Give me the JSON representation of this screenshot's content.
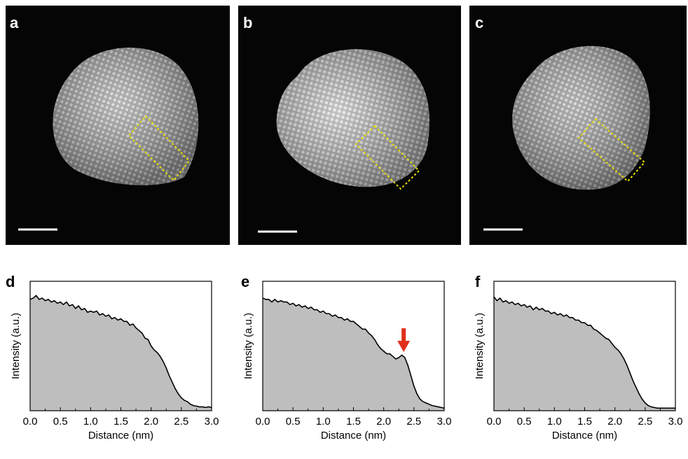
{
  "figure": {
    "image_panels": [
      {
        "letter": "a",
        "lattice_color": "#d8d8d8",
        "region_box_color": "#e8e000"
      },
      {
        "letter": "b",
        "lattice_color": "#e6e6e6",
        "region_box_color": "#e8e000"
      },
      {
        "letter": "c",
        "lattice_color": "#d4d4d4",
        "region_box_color": "#e8e000"
      }
    ],
    "plot_panels": [
      {
        "letter": "d"
      },
      {
        "letter": "e",
        "arrow_color": "#e0301a",
        "arrow_x": 2.33
      },
      {
        "letter": "f"
      }
    ]
  },
  "chart_data": [
    {
      "type": "area",
      "panel": "d",
      "xlabel": "Distance (nm)",
      "ylabel": "Intensity (a.u.)",
      "xlim": [
        0.0,
        3.0
      ],
      "ylim": [
        0,
        1
      ],
      "xticks": [
        "0.0",
        "0.5",
        "1.0",
        "1.5",
        "2.0",
        "2.5",
        "3.0"
      ],
      "yticks_shown": false,
      "fill_color": "#bebebe",
      "x": [
        0.0,
        0.05,
        0.1,
        0.15,
        0.2,
        0.25,
        0.3,
        0.35,
        0.4,
        0.45,
        0.5,
        0.55,
        0.6,
        0.65,
        0.7,
        0.75,
        0.8,
        0.85,
        0.9,
        0.95,
        1.0,
        1.05,
        1.1,
        1.15,
        1.2,
        1.25,
        1.3,
        1.35,
        1.4,
        1.45,
        1.5,
        1.55,
        1.6,
        1.65,
        1.7,
        1.75,
        1.8,
        1.85,
        1.9,
        1.95,
        2.0,
        2.05,
        2.1,
        2.15,
        2.2,
        2.25,
        2.3,
        2.35,
        2.4,
        2.45,
        2.5,
        2.55,
        2.6,
        2.65,
        2.7,
        2.75,
        2.8,
        2.85,
        2.9,
        2.95,
        3.0
      ],
      "y": [
        0.86,
        0.87,
        0.89,
        0.86,
        0.87,
        0.85,
        0.86,
        0.84,
        0.85,
        0.83,
        0.84,
        0.82,
        0.84,
        0.81,
        0.82,
        0.79,
        0.81,
        0.78,
        0.79,
        0.76,
        0.77,
        0.76,
        0.77,
        0.74,
        0.75,
        0.73,
        0.74,
        0.71,
        0.72,
        0.7,
        0.71,
        0.69,
        0.69,
        0.66,
        0.67,
        0.64,
        0.62,
        0.6,
        0.56,
        0.55,
        0.5,
        0.47,
        0.45,
        0.42,
        0.38,
        0.33,
        0.27,
        0.22,
        0.17,
        0.13,
        0.1,
        0.08,
        0.07,
        0.05,
        0.04,
        0.035,
        0.03,
        0.03,
        0.025,
        0.03,
        0.025
      ]
    },
    {
      "type": "area",
      "panel": "e",
      "xlabel": "Distance (nm)",
      "ylabel": "Intensity (a.u.)",
      "xlim": [
        0.0,
        3.0
      ],
      "ylim": [
        0,
        1
      ],
      "xticks": [
        "0.0",
        "0.5",
        "1.0",
        "1.5",
        "2.0",
        "2.5",
        "3.0"
      ],
      "yticks_shown": false,
      "fill_color": "#bebebe",
      "x": [
        0.0,
        0.05,
        0.1,
        0.15,
        0.2,
        0.25,
        0.3,
        0.35,
        0.4,
        0.45,
        0.5,
        0.55,
        0.6,
        0.65,
        0.7,
        0.75,
        0.8,
        0.85,
        0.9,
        0.95,
        1.0,
        1.05,
        1.1,
        1.15,
        1.2,
        1.25,
        1.3,
        1.35,
        1.4,
        1.45,
        1.5,
        1.55,
        1.6,
        1.65,
        1.7,
        1.75,
        1.8,
        1.85,
        1.9,
        1.95,
        2.0,
        2.05,
        2.1,
        2.15,
        2.2,
        2.25,
        2.3,
        2.35,
        2.4,
        2.45,
        2.5,
        2.55,
        2.6,
        2.65,
        2.7,
        2.75,
        2.8,
        2.85,
        2.9,
        2.95,
        3.0
      ],
      "y": [
        0.87,
        0.86,
        0.86,
        0.84,
        0.86,
        0.84,
        0.85,
        0.84,
        0.84,
        0.82,
        0.83,
        0.81,
        0.82,
        0.8,
        0.81,
        0.79,
        0.8,
        0.78,
        0.78,
        0.76,
        0.77,
        0.75,
        0.75,
        0.73,
        0.74,
        0.72,
        0.72,
        0.7,
        0.71,
        0.69,
        0.69,
        0.67,
        0.65,
        0.63,
        0.63,
        0.6,
        0.58,
        0.55,
        0.51,
        0.48,
        0.46,
        0.44,
        0.44,
        0.42,
        0.4,
        0.41,
        0.43,
        0.41,
        0.35,
        0.27,
        0.19,
        0.13,
        0.09,
        0.07,
        0.06,
        0.05,
        0.04,
        0.035,
        0.03,
        0.025,
        0.02
      ]
    },
    {
      "type": "area",
      "panel": "f",
      "xlabel": "Distance (nm)",
      "ylabel": "Intensity (a.u.)",
      "xlim": [
        0.0,
        3.0
      ],
      "ylim": [
        0,
        1
      ],
      "xticks": [
        "0.0",
        "0.5",
        "1.0",
        "1.5",
        "2.0",
        "2.5",
        "3.0"
      ],
      "yticks_shown": false,
      "fill_color": "#bebebe",
      "x": [
        0.0,
        0.05,
        0.1,
        0.15,
        0.2,
        0.25,
        0.3,
        0.35,
        0.4,
        0.45,
        0.5,
        0.55,
        0.6,
        0.65,
        0.7,
        0.75,
        0.8,
        0.85,
        0.9,
        0.95,
        1.0,
        1.05,
        1.1,
        1.15,
        1.2,
        1.25,
        1.3,
        1.35,
        1.4,
        1.45,
        1.5,
        1.55,
        1.6,
        1.65,
        1.7,
        1.75,
        1.8,
        1.85,
        1.9,
        1.95,
        2.0,
        2.05,
        2.1,
        2.15,
        2.2,
        2.25,
        2.3,
        2.35,
        2.4,
        2.45,
        2.5,
        2.55,
        2.6,
        2.65,
        2.7,
        2.75,
        2.8,
        2.85,
        2.9,
        2.95,
        3.0
      ],
      "y": [
        0.88,
        0.85,
        0.87,
        0.84,
        0.85,
        0.83,
        0.84,
        0.82,
        0.83,
        0.81,
        0.82,
        0.8,
        0.81,
        0.78,
        0.8,
        0.78,
        0.79,
        0.77,
        0.77,
        0.75,
        0.76,
        0.74,
        0.75,
        0.73,
        0.74,
        0.72,
        0.72,
        0.7,
        0.7,
        0.68,
        0.68,
        0.66,
        0.66,
        0.63,
        0.62,
        0.6,
        0.58,
        0.56,
        0.55,
        0.52,
        0.49,
        0.47,
        0.44,
        0.4,
        0.35,
        0.29,
        0.23,
        0.18,
        0.13,
        0.09,
        0.06,
        0.04,
        0.03,
        0.025,
        0.02,
        0.02,
        0.02,
        0.02,
        0.02,
        0.02,
        0.02
      ]
    }
  ]
}
